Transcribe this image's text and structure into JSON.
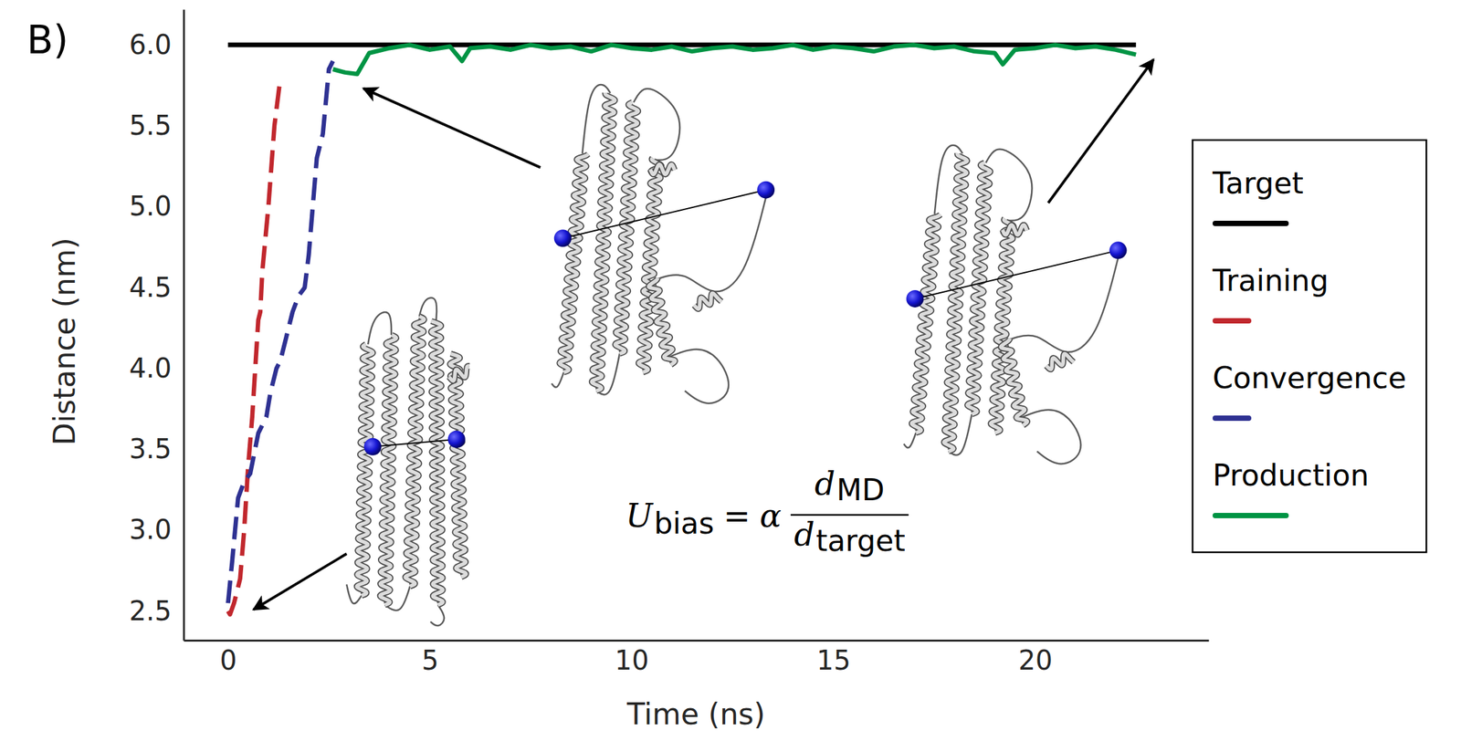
{
  "chart_data": {
    "type": "line",
    "panel": "B)",
    "xlabel": "Time (ns)",
    "ylabel": "Distance (nm)",
    "xlim": [
      -1.1,
      24.3
    ],
    "ylim": [
      2.32,
      6.22
    ],
    "xticks": [
      0,
      5,
      10,
      15,
      20
    ],
    "yticks": [
      2.5,
      {
        "value": 3,
        "label": "3.0"
      },
      3.5,
      {
        "value": 4,
        "label": "4.0"
      },
      4.5,
      {
        "value": 5,
        "label": "5.0"
      },
      5.5,
      {
        "value": 6,
        "label": "6.0"
      }
    ],
    "grid": false,
    "legend": "right",
    "equation": {
      "lhs": "U",
      "lhs_sub": "bias",
      "operator": "=",
      "coefficient": "α",
      "numerator": "d",
      "numerator_sub": "MD",
      "denominator": "d",
      "denominator_sub": "target"
    },
    "series": [
      {
        "name": "Target",
        "color": "#000000",
        "line_style": "solid",
        "x": [
          0,
          22.5
        ],
        "values": [
          6.0,
          6.0
        ]
      },
      {
        "name": "Training",
        "color": "#c1272d",
        "line_style": "dashed",
        "x": [
          0,
          0.05,
          0.15,
          0.3,
          0.4,
          0.5,
          0.6,
          0.75,
          0.8,
          0.85,
          1.0,
          1.15,
          1.3
        ],
        "values": [
          2.5,
          2.48,
          2.55,
          2.7,
          3.0,
          3.4,
          3.7,
          4.3,
          4.35,
          4.6,
          5.0,
          5.5,
          5.8
        ]
      },
      {
        "name": "Convergence",
        "color": "#2e3192",
        "line_style": "dashed",
        "x": [
          0,
          0.1,
          0.25,
          0.4,
          0.55,
          0.75,
          0.95,
          1.05,
          1.2,
          1.3,
          1.45,
          1.6,
          1.75,
          1.9,
          2.0,
          2.1,
          2.2,
          2.35,
          2.5,
          2.6
        ],
        "values": [
          2.55,
          2.8,
          3.2,
          3.3,
          3.35,
          3.6,
          3.7,
          3.85,
          4.0,
          4.05,
          4.2,
          4.35,
          4.45,
          4.5,
          4.7,
          5.0,
          5.3,
          5.45,
          5.85,
          5.9
        ]
      },
      {
        "name": "Production",
        "color": "#009444",
        "line_style": "solid",
        "x": [
          2.6,
          2.9,
          3.2,
          3.5,
          4,
          4.5,
          5,
          5.5,
          5.8,
          6.0,
          6.5,
          7,
          7.5,
          8,
          8.5,
          9,
          9.5,
          10,
          10.5,
          11,
          11.5,
          12,
          12.5,
          13,
          13.5,
          14,
          14.5,
          15,
          15.5,
          16,
          16.5,
          17,
          17.5,
          18,
          18.5,
          19,
          19.2,
          19.5,
          20,
          20.5,
          21,
          21.5,
          22,
          22.5
        ],
        "values": [
          5.85,
          5.83,
          5.82,
          5.95,
          5.98,
          6.0,
          5.97,
          5.99,
          5.9,
          5.98,
          5.99,
          5.97,
          6.0,
          5.98,
          5.99,
          5.96,
          6.0,
          5.98,
          5.97,
          5.99,
          5.96,
          5.98,
          5.99,
          5.97,
          5.98,
          6.0,
          5.97,
          5.99,
          5.98,
          5.96,
          5.99,
          6.0,
          5.98,
          5.99,
          5.96,
          5.95,
          5.88,
          5.97,
          5.98,
          6.0,
          5.98,
          5.99,
          5.97,
          5.94
        ]
      }
    ]
  }
}
